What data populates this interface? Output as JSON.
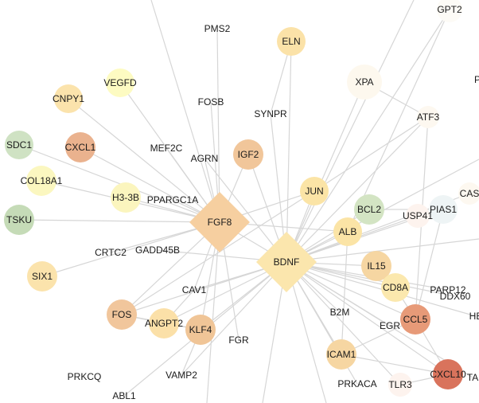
{
  "nodes": [
    {
      "id": "GPT2",
      "label": "GPT2",
      "color": "#fdfbf6"
    },
    {
      "id": "PMS2",
      "label": "PMS2",
      "color": ""
    },
    {
      "id": "ELN",
      "label": "ELN",
      "color": "#fbe2a8"
    },
    {
      "id": "XPA",
      "label": "XPA",
      "color": "#fdf8ee"
    },
    {
      "id": "P",
      "label": "P",
      "color": ""
    },
    {
      "id": "VEGFD",
      "label": "VEGFD",
      "color": "#fdfbc2"
    },
    {
      "id": "CNPY1",
      "label": "CNPY1",
      "color": "#fbe3ac"
    },
    {
      "id": "FOSB",
      "label": "FOSB",
      "color": ""
    },
    {
      "id": "SYNPR",
      "label": "SYNPR",
      "color": ""
    },
    {
      "id": "ATF3",
      "label": "ATF3",
      "color": "#fdf8f0"
    },
    {
      "id": "SDC1",
      "label": "SDC1",
      "color": "#cfe2c3"
    },
    {
      "id": "CXCL1",
      "label": "CXCL1",
      "color": "#eab28e"
    },
    {
      "id": "MEF2C",
      "label": "MEF2C",
      "color": ""
    },
    {
      "id": "IGF2",
      "label": "IGF2",
      "color": "#f1c69a"
    },
    {
      "id": "AGRN",
      "label": "AGRN",
      "color": ""
    },
    {
      "id": "COL18A1",
      "label": "COL18A1",
      "color": "#fbf7c0"
    },
    {
      "id": "JUN",
      "label": "JUN",
      "color": "#fbe4a6"
    },
    {
      "id": "CAS",
      "label": "CAS",
      "color": "#fdf8f0"
    },
    {
      "id": "H3-3B",
      "label": "H3-3B",
      "color": "#fbf5be"
    },
    {
      "id": "PPARGC1A",
      "label": "PPARGC1A",
      "color": ""
    },
    {
      "id": "FGF8",
      "label": "FGF8",
      "color": "#f6cfa0"
    },
    {
      "id": "BCL2",
      "label": "BCL2",
      "color": "#d3e4c3"
    },
    {
      "id": "PIAS1",
      "label": "PIAS1",
      "color": "#eef4f5"
    },
    {
      "id": "USP41",
      "label": "USP41",
      "color": "#fdf3ee"
    },
    {
      "id": "TSKU",
      "label": "TSKU",
      "color": "#c5dbb7"
    },
    {
      "id": "ALB",
      "label": "ALB",
      "color": "#fbe4a6"
    },
    {
      "id": "CRTC2",
      "label": "CRTC2",
      "color": ""
    },
    {
      "id": "GADD45B",
      "label": "GADD45B",
      "color": ""
    },
    {
      "id": "BDNF",
      "label": "BDNF",
      "color": "#fbe6ad"
    },
    {
      "id": "IL15",
      "label": "IL15",
      "color": "#f6d6a2"
    },
    {
      "id": "SIX1",
      "label": "SIX1",
      "color": "#fbe3ac"
    },
    {
      "id": "CD8A",
      "label": "CD8A",
      "color": "#fbe8ae"
    },
    {
      "id": "PARP12",
      "label": "PARP12",
      "color": ""
    },
    {
      "id": "CAV1",
      "label": "CAV1",
      "color": ""
    },
    {
      "id": "DDX60",
      "label": "DDX60",
      "color": ""
    },
    {
      "id": "FOS",
      "label": "FOS",
      "color": "#f1c69c"
    },
    {
      "id": "B2M",
      "label": "B2M",
      "color": ""
    },
    {
      "id": "CCL5",
      "label": "CCL5",
      "color": "#e79a78"
    },
    {
      "id": "HE",
      "label": "HE",
      "color": ""
    },
    {
      "id": "ANGPT2",
      "label": "ANGPT2",
      "color": "#fbe0a8"
    },
    {
      "id": "KLF4",
      "label": "KLF4",
      "color": "#f0c597"
    },
    {
      "id": "EGR",
      "label": "EGR",
      "color": ""
    },
    {
      "id": "FGR",
      "label": "FGR",
      "color": ""
    },
    {
      "id": "ICAM1",
      "label": "ICAM1",
      "color": "#f6d6a2"
    },
    {
      "id": "CXCL10",
      "label": "CXCL10",
      "color": "#d9735c"
    },
    {
      "id": "TA",
      "label": "TA",
      "color": ""
    },
    {
      "id": "PRKCQ",
      "label": "PRKCQ",
      "color": ""
    },
    {
      "id": "VAMP2",
      "label": "VAMP2",
      "color": ""
    },
    {
      "id": "PRKACA",
      "label": "PRKACA",
      "color": ""
    },
    {
      "id": "TLR3",
      "label": "TLR3",
      "color": "#fdf3ee"
    },
    {
      "id": "ABL1",
      "label": "ABL1",
      "color": ""
    }
  ],
  "edges": [
    [
      "BDNF",
      "ELN"
    ],
    [
      "BDNF",
      "XPA"
    ],
    [
      "BDNF",
      "GPT2"
    ],
    [
      "BDNF",
      "IGF2"
    ],
    [
      "BDNF",
      "JUN"
    ],
    [
      "BDNF",
      "BCL2"
    ],
    [
      "BDNF",
      "ALB"
    ],
    [
      "BDNF",
      "IL15"
    ],
    [
      "BDNF",
      "CD8A"
    ],
    [
      "BDNF",
      "CCL5"
    ],
    [
      "BDNF",
      "ICAM1"
    ],
    [
      "BDNF",
      "CXCL10"
    ],
    [
      "BDNF",
      "FOS"
    ],
    [
      "BDNF",
      "KLF4"
    ],
    [
      "BDNF",
      "ANGPT2"
    ],
    [
      "BDNF",
      "FGF8"
    ],
    [
      "BDNF",
      "SYNPR"
    ],
    [
      "BDNF",
      "PIAS1"
    ],
    [
      "BDNF",
      "USP41"
    ],
    [
      "BDNF",
      "PARP12"
    ],
    [
      "BDNF",
      "TLR3"
    ],
    [
      "BDNF",
      "PRKACA"
    ],
    [
      "BDNF",
      "VAMP2"
    ],
    [
      "BDNF",
      "ABL1"
    ],
    [
      "BDNF",
      "GADD45B"
    ],
    [
      "BDNF",
      "ATF3"
    ],
    [
      "BDNF",
      "B2M"
    ],
    [
      "BDNF",
      "EGR"
    ],
    [
      "BDNF",
      "DDX60"
    ],
    [
      "BDNF",
      "HE"
    ],
    [
      "BDNF",
      "TA"
    ],
    [
      "BDNF",
      "CAS"
    ],
    [
      "BDNF",
      "AGRN"
    ],
    [
      "BDNF",
      "CAV1"
    ],
    [
      "FGF8",
      "CNPY1"
    ],
    [
      "FGF8",
      "VEGFD"
    ],
    [
      "FGF8",
      "CXCL1"
    ],
    [
      "FGF8",
      "SDC1"
    ],
    [
      "FGF8",
      "COL18A1"
    ],
    [
      "FGF8",
      "H3-3B"
    ],
    [
      "FGF8",
      "TSKU"
    ],
    [
      "FGF8",
      "SIX1"
    ],
    [
      "FGF8",
      "MEF2C"
    ],
    [
      "FGF8",
      "FOSB"
    ],
    [
      "FGF8",
      "PMS2"
    ],
    [
      "FGF8",
      "IGF2"
    ],
    [
      "FGF8",
      "CRTC2"
    ],
    [
      "FGF8",
      "PPARGC1A"
    ],
    [
      "FGF8",
      "JUN"
    ],
    [
      "FGF8",
      "ALB"
    ],
    [
      "FGF8",
      "FOS"
    ],
    [
      "FGF8",
      "KLF4"
    ],
    [
      "FGF8",
      "CAV1"
    ],
    [
      "FGF8",
      "AGRN"
    ],
    [
      "FGF8",
      "FGR"
    ],
    [
      "ELN",
      "SYNPR"
    ],
    [
      "XPA",
      "ATF3"
    ],
    [
      "ATF3",
      "JUN"
    ],
    [
      "ATF3",
      "CCL5"
    ],
    [
      "GPT2",
      "ALB"
    ],
    [
      "PIAS1",
      "CCL5"
    ],
    [
      "CCL5",
      "CXCL10"
    ],
    [
      "CCL5",
      "ICAM1"
    ],
    [
      "CCL5",
      "CD8A"
    ],
    [
      "IL15",
      "CD8A"
    ],
    [
      "ICAM1",
      "CXCL10"
    ],
    [
      "ICAM1",
      "ALB"
    ],
    [
      "KLF4",
      "FOS"
    ],
    [
      "ANGPT2",
      "KLF4"
    ],
    [
      "ANGPT2",
      "CAV1"
    ],
    [
      "FOS",
      "ANGPT2"
    ],
    [
      "KLF4",
      "VAMP2"
    ],
    [
      "CXCL10",
      "TLR3"
    ],
    [
      "BCL2",
      "PIAS1"
    ],
    [
      "JUN",
      "FOS"
    ]
  ]
}
